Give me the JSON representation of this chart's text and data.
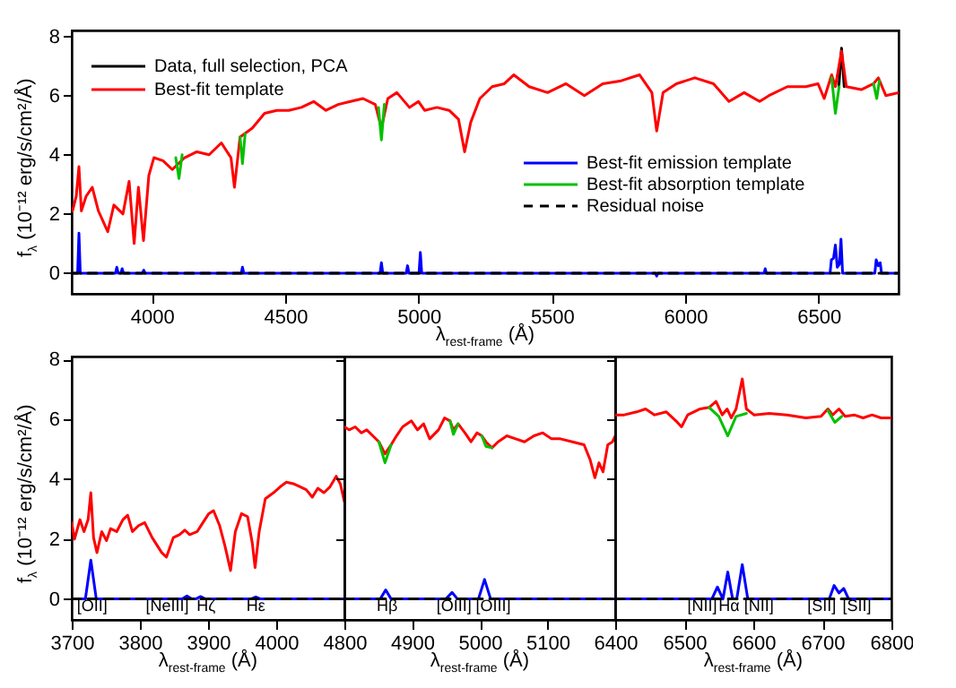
{
  "chart_data": [
    {
      "type": "line",
      "xlabel": "λ$_{rest-frame}$ (Å)",
      "ylabel": "f$_{λ}$ (10⁻¹² erg/s/cm²/Å)",
      "xlim": [
        3700,
        6800
      ],
      "xticks": [
        4000,
        4500,
        5000,
        5500,
        6000,
        6500
      ],
      "ylim": [
        -0.7,
        8.2
      ],
      "yticks": [
        0,
        2,
        4,
        6,
        8
      ],
      "legend": "top left",
      "series": [
        {
          "name": "Data, full selection, PCA",
          "color": "#000000",
          "x": [
            6576,
            6586,
            6596
          ],
          "values": [
            6.3,
            7.6,
            6.3
          ]
        },
        {
          "name": "Best-fit template",
          "color": "#ff0000",
          "x": [
            3703,
            3717,
            3727,
            3736,
            3754,
            3777,
            3800,
            3835,
            3858,
            3892,
            3915,
            3934,
            3950,
            3969,
            3989,
            4008,
            4042,
            4077,
            4123,
            4169,
            4215,
            4261,
            4297,
            4310,
            4331,
            4377,
            4423,
            4469,
            4514,
            4561,
            4607,
            4653,
            4699,
            4745,
            4792,
            4838,
            4861,
            4885,
            4919,
            4966,
            5000,
            5023,
            5069,
            5115,
            5150,
            5173,
            5196,
            5230,
            5276,
            5322,
            5357,
            5415,
            5484,
            5553,
            5622,
            5691,
            5760,
            5829,
            5875,
            5893,
            5917,
            5967,
            6036,
            6106,
            6164,
            6221,
            6279,
            6314,
            6383,
            6452,
            6498,
            6521,
            6549,
            6563,
            6586,
            6604,
            6660,
            6706,
            6724,
            6752,
            6800
          ],
          "values": [
            2.1,
            2.6,
            3.6,
            2.1,
            2.6,
            2.9,
            2.1,
            1.4,
            2.3,
            2.0,
            3.1,
            1.0,
            2.9,
            1.1,
            3.3,
            3.9,
            3.8,
            3.5,
            3.9,
            4.1,
            4.0,
            4.4,
            3.9,
            2.9,
            4.6,
            4.9,
            5.4,
            5.5,
            5.5,
            5.6,
            5.8,
            5.5,
            5.7,
            5.8,
            5.9,
            5.7,
            4.9,
            5.9,
            6.1,
            5.6,
            5.8,
            5.5,
            5.6,
            5.5,
            5.2,
            4.1,
            5.1,
            5.9,
            6.3,
            6.4,
            6.7,
            6.3,
            6.1,
            6.4,
            6.0,
            6.4,
            6.5,
            6.7,
            6.1,
            4.8,
            6.1,
            6.4,
            6.6,
            6.4,
            5.8,
            6.1,
            5.8,
            6.0,
            6.3,
            6.3,
            6.4,
            5.9,
            6.7,
            6.3,
            7.5,
            6.3,
            6.2,
            6.4,
            6.6,
            6.0,
            6.1
          ]
        },
        {
          "name": "Best-fit emission template",
          "color": "#0000ff",
          "x": [
            3700,
            3722,
            3727,
            3732,
            3864,
            3869,
            3874,
            3884,
            3889,
            3894,
            3965,
            3970,
            3975,
            4336,
            4340,
            4345,
            4856,
            4861,
            4866,
            4954,
            4959,
            4964,
            5002,
            5007,
            5012,
            5888,
            5893,
            5898,
            6296,
            6300,
            6304,
            6543,
            6548,
            6556,
            6563,
            6570,
            6578,
            6584,
            6590,
            6711,
            6716,
            6724,
            6731,
            6736,
            6800
          ],
          "values": [
            0,
            0,
            1.35,
            0,
            0,
            0.2,
            0,
            0,
            0.15,
            0,
            0,
            0.1,
            0,
            0,
            0.2,
            0,
            0,
            0.35,
            0,
            0,
            0.25,
            0,
            0,
            0.7,
            0,
            0,
            -0.1,
            0,
            0,
            0.15,
            0,
            0,
            0.45,
            0.5,
            0.95,
            0.2,
            0.3,
            1.15,
            0,
            0,
            0.45,
            0.25,
            0.35,
            0,
            0
          ]
        },
        {
          "name": "Best-fit absorption template",
          "color": "#00c000",
          "x": [
            4850,
            4861,
            4872
          ],
          "values": [
            5.6,
            4.5,
            5.7
          ]
        },
        {
          "name": "Residual noise",
          "color": "#000000",
          "line_style": "dashed",
          "x": [
            3700,
            6800
          ],
          "values": [
            0,
            0
          ]
        },
        {
          "color": "#00c000",
          "x": [
            4090,
            4102,
            4114
          ],
          "values": [
            3.9,
            3.2,
            4.0
          ]
        },
        {
          "color": "#00c000",
          "x": [
            4331,
            4340,
            4350
          ],
          "values": [
            4.6,
            3.7,
            4.7
          ]
        },
        {
          "color": "#00c000",
          "x": [
            6549,
            6563,
            6577
          ],
          "values": [
            6.6,
            5.4,
            6.3
          ]
        },
        {
          "color": "#00c000",
          "x": [
            6706,
            6718,
            6728
          ],
          "values": [
            6.4,
            5.9,
            6.5
          ]
        }
      ]
    },
    {
      "type": "line",
      "xlabel": "λ$_{rest-frame}$ (Å)",
      "ylabel": "f$_{λ}$ (10⁻¹² erg/s/cm²/Å)",
      "xlim": [
        3700,
        4100
      ],
      "xticks": [
        3700,
        3800,
        3900,
        4000
      ],
      "ylim": [
        -0.7,
        8.1
      ],
      "yticks": [
        0,
        2,
        4,
        6,
        8
      ],
      "annotations": [
        {
          "text": "[OII]",
          "x": 3730
        },
        {
          "text": "[NeIII]",
          "x": 3840
        },
        {
          "text": "Hζ",
          "x": 3897
        },
        {
          "text": "Hε",
          "x": 3970
        }
      ],
      "series": [
        {
          "color": "#ff0000",
          "x": [
            3700,
            3704,
            3712,
            3718,
            3724,
            3728,
            3732,
            3737,
            3744,
            3751,
            3757,
            3766,
            3775,
            3782,
            3789,
            3798,
            3807,
            3818,
            3832,
            3839,
            3849,
            3858,
            3866,
            3873,
            3884,
            3891,
            3901,
            3908,
            3917,
            3925,
            3933,
            3940,
            3949,
            3958,
            3965,
            3969,
            3975,
            3984,
            3996,
            4006,
            4015,
            4025,
            4035,
            4044,
            4053,
            4061,
            4070,
            4079,
            4088,
            4094,
            4100
          ],
          "values": [
            2.55,
            2.0,
            2.65,
            2.25,
            2.65,
            3.55,
            2.05,
            1.55,
            2.25,
            1.95,
            2.35,
            2.25,
            2.65,
            2.8,
            2.25,
            2.45,
            2.55,
            2.05,
            1.55,
            1.4,
            2.05,
            2.15,
            2.3,
            2.15,
            2.25,
            2.5,
            2.85,
            2.95,
            2.45,
            1.75,
            0.95,
            2.25,
            2.85,
            2.75,
            1.85,
            1.05,
            2.25,
            3.35,
            3.55,
            3.75,
            3.9,
            3.85,
            3.75,
            3.65,
            3.4,
            3.7,
            3.55,
            3.75,
            4.1,
            3.85,
            3.25
          ]
        },
        {
          "color": "#0000ff",
          "x": [
            3700,
            3720,
            3728,
            3736,
            3862,
            3869,
            3876,
            3882,
            3889,
            3896,
            3963,
            3970,
            3977,
            4100
          ],
          "values": [
            0,
            0,
            1.3,
            0,
            0,
            0.1,
            0,
            0,
            0.08,
            0,
            0,
            0.07,
            0,
            0
          ]
        },
        {
          "color": "#000000",
          "line_style": "dashed",
          "x": [
            3700,
            4100
          ],
          "values": [
            0,
            0
          ]
        }
      ]
    },
    {
      "type": "line",
      "xlabel": "λ$_{rest-frame}$ (Å)",
      "xlim": [
        4800,
        5200
      ],
      "xticks": [
        4800,
        4900,
        5000,
        5100
      ],
      "ylim": [
        -0.7,
        8.1
      ],
      "yticks": [
        0,
        2,
        4,
        6,
        8
      ],
      "tick_labels": "x",
      "annotations": [
        {
          "text": "Hβ",
          "x": 4863
        },
        {
          "text": "[OIII]",
          "x": 4962
        },
        {
          "text": "[OIII]",
          "x": 5020
        }
      ],
      "series": [
        {
          "color": "#ff0000",
          "x": [
            4800,
            4807,
            4816,
            4825,
            4833,
            4842,
            4851,
            4860,
            4869,
            4877,
            4886,
            4899,
            4908,
            4917,
            4926,
            4939,
            4948,
            4956,
            4961,
            4968,
            4978,
            4987,
            4996,
            5003,
            5009,
            5018,
            5027,
            5040,
            5053,
            5066,
            5080,
            5093,
            5106,
            5119,
            5137,
            5154,
            5163,
            5170,
            5176,
            5182,
            5189,
            5196,
            5200
          ],
          "values": [
            5.75,
            5.65,
            5.75,
            5.55,
            5.65,
            5.45,
            5.25,
            4.85,
            5.15,
            5.45,
            5.75,
            5.95,
            5.65,
            5.85,
            5.35,
            5.65,
            6.05,
            5.95,
            5.65,
            5.85,
            5.55,
            5.25,
            5.55,
            5.45,
            5.25,
            5.05,
            5.25,
            5.45,
            5.35,
            5.25,
            5.45,
            5.55,
            5.35,
            5.35,
            5.25,
            5.15,
            4.65,
            4.05,
            4.55,
            4.25,
            5.15,
            5.25,
            5.45
          ]
        },
        {
          "color": "#00c000",
          "x": [
            4851,
            4860,
            4869
          ],
          "values": [
            5.25,
            4.55,
            5.15
          ]
        },
        {
          "color": "#00c000",
          "x": [
            4956,
            4961,
            4968
          ],
          "values": [
            5.95,
            5.5,
            5.85
          ]
        },
        {
          "color": "#00c000",
          "x": [
            5003,
            5009,
            5018
          ],
          "values": [
            5.45,
            5.1,
            5.05
          ]
        },
        {
          "color": "#0000ff",
          "x": [
            4800,
            4853,
            4861,
            4869,
            4950,
            4959,
            4967,
            4998,
            5007,
            5016,
            5200
          ],
          "values": [
            0,
            0,
            0.3,
            0,
            0,
            0.22,
            0,
            0,
            0.65,
            0,
            0
          ]
        },
        {
          "color": "#000000",
          "line_style": "dashed",
          "x": [
            4800,
            5200
          ],
          "values": [
            0,
            0
          ]
        }
      ]
    },
    {
      "type": "line",
      "xlabel": "λ$_{rest-frame}$ (Å)",
      "xlim": [
        6400,
        6800
      ],
      "xticks": [
        6400,
        6500,
        6600,
        6700,
        6800
      ],
      "ylim": [
        -0.7,
        8.1
      ],
      "yticks": [
        0,
        2,
        4,
        6,
        8
      ],
      "tick_labels": "x",
      "annotations": [
        {
          "text": "[NII]",
          "x": 6526
        },
        {
          "text": "Hα",
          "x": 6565
        },
        {
          "text": "[NII]",
          "x": 6608
        },
        {
          "text": "[SII]",
          "x": 6699
        },
        {
          "text": "[SII]",
          "x": 6750
        }
      ],
      "series": [
        {
          "color": "#ff0000",
          "x": [
            6400,
            6413,
            6431,
            6444,
            6457,
            6474,
            6488,
            6496,
            6505,
            6523,
            6536,
            6546,
            6555,
            6562,
            6568,
            6575,
            6584,
            6590,
            6601,
            6623,
            6649,
            6676,
            6698,
            6708,
            6715,
            6724,
            6733,
            6746,
            6759,
            6772,
            6785,
            6800
          ],
          "values": [
            6.15,
            6.15,
            6.25,
            6.35,
            6.15,
            6.25,
            5.95,
            5.75,
            6.15,
            6.35,
            6.4,
            6.6,
            6.15,
            6.35,
            6.05,
            6.35,
            7.35,
            6.35,
            6.15,
            6.2,
            6.15,
            6.05,
            6.1,
            6.35,
            6.15,
            6.35,
            6.1,
            6.15,
            6.05,
            6.15,
            6.05,
            6.05
          ]
        },
        {
          "color": "#00c000",
          "x": [
            6536,
            6550,
            6563,
            6575,
            6590
          ],
          "values": [
            6.4,
            6.1,
            5.45,
            6.1,
            6.2
          ]
        },
        {
          "color": "#00c000",
          "x": [
            6708,
            6718,
            6728
          ],
          "values": [
            6.3,
            5.9,
            6.1
          ]
        },
        {
          "color": "#0000ff",
          "x": [
            6400,
            6540,
            6548,
            6556,
            6563,
            6570,
            6576,
            6584,
            6592,
            6710,
            6717,
            6724,
            6731,
            6738,
            6800
          ],
          "values": [
            0,
            0,
            0.4,
            0,
            0.9,
            0,
            0,
            1.15,
            0,
            0,
            0.45,
            0.2,
            0.35,
            0,
            0
          ]
        },
        {
          "color": "#000000",
          "line_style": "dashed",
          "x": [
            6400,
            6800
          ],
          "values": [
            0,
            0
          ]
        }
      ]
    }
  ]
}
